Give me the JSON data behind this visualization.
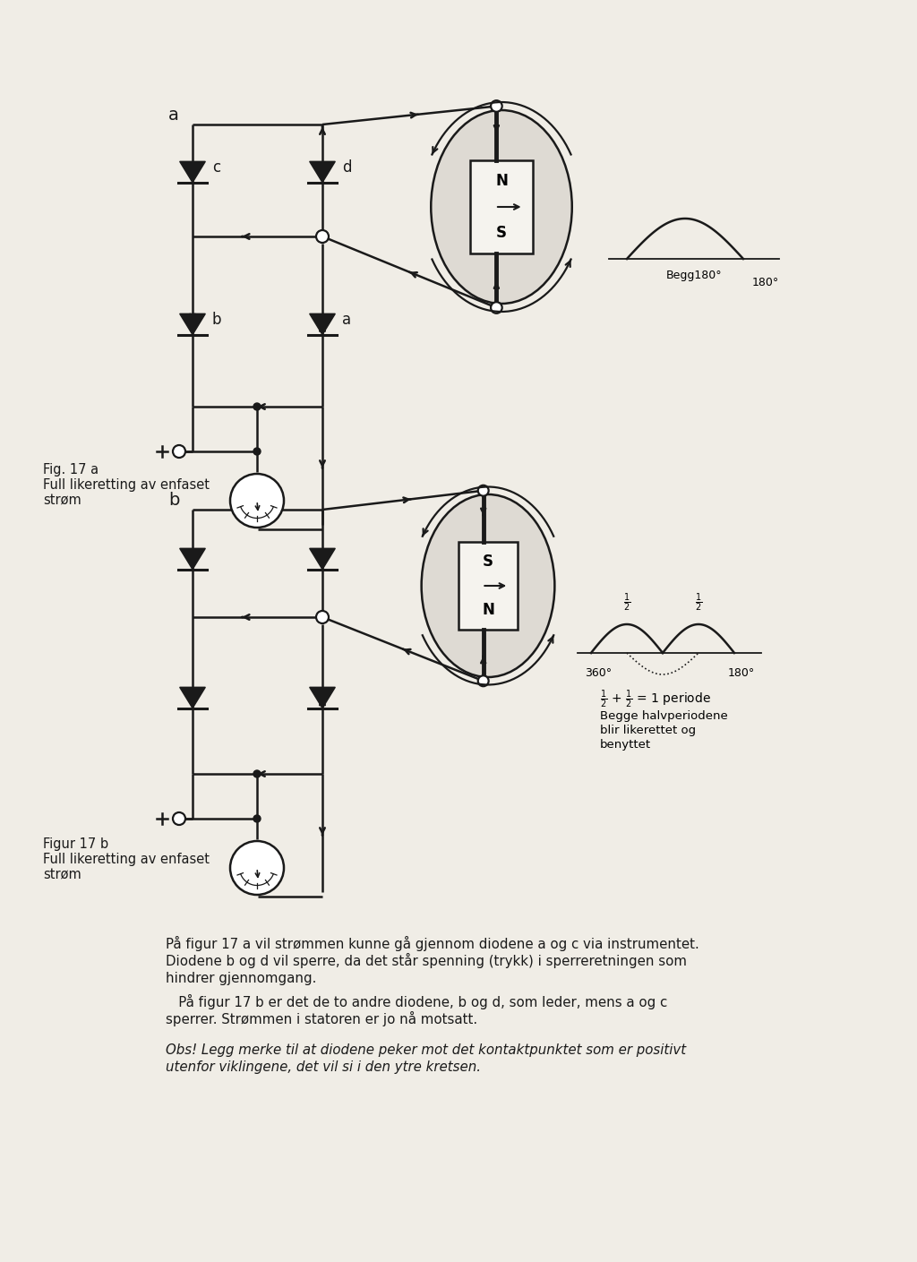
{
  "bg_color": "#f0ede6",
  "line_color": "#1a1a1a",
  "fig_width": 10.24,
  "fig_height": 14.09,
  "fig17a_label": "a",
  "fig17b_label": "b",
  "caption_a_line1": "Fig. 17 a",
  "caption_a_line2": "Full likeretting av enfaset",
  "caption_a_line3": "strøm",
  "caption_b_line1": "Figur 17 b",
  "caption_b_line2": "Full likeretting av enfaset",
  "caption_b_line3": "strøm",
  "text_para1_line1": "På figur 17 a vil strømmen kunne gå gjennom diodene a og c via instrumentet.",
  "text_para1_line2": "Diodene b og d vil sperre, da det står spenning (trykk) i sperreretningen som",
  "text_para1_line3": "hindrer gjennomgang.",
  "text_para2_line1": "   På figur 17 b er det de to andre diodene, b og d, som leder, mens a og c",
  "text_para2_line2": "sperrer. Strømmen i statoren er jo nå motsatt.",
  "text_obs_line1": "Obs! Legg merke til at diodene peker mot det kontaktpunktet som er positivt",
  "text_obs_line2": "utenfor viklingene, det vil si i den ytre kretsen.",
  "begge_line1": "Begge halvperiodene",
  "begge_line2": "blir likerettet og",
  "begge_line3": "benyttet",
  "N_label": "N",
  "S_label": "S"
}
